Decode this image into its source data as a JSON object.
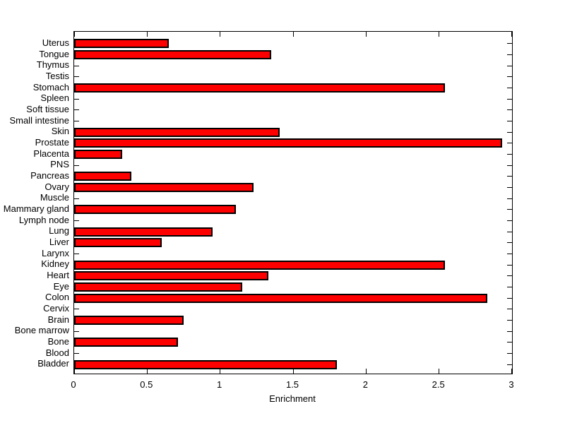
{
  "chart_data": {
    "type": "bar",
    "orientation": "horizontal",
    "title": "",
    "xlabel": "Enrichment",
    "ylabel": "",
    "xlim": [
      0,
      3
    ],
    "x_ticks": [
      0,
      0.5,
      1,
      1.5,
      2,
      2.5,
      3
    ],
    "x_tick_labels": [
      "0",
      "0.5",
      "1",
      "1.5",
      "2",
      "2.5",
      "3"
    ],
    "grid": false,
    "legend": null,
    "bar_color": "#ff0000",
    "bar_edge_color": "#000000",
    "axis_color": "#000000",
    "background_color": "#ffffff",
    "categories": [
      "Uterus",
      "Tongue",
      "Thymus",
      "Testis",
      "Stomach",
      "Spleen",
      "Soft tissue",
      "Small intestine",
      "Skin",
      "Prostate",
      "Placenta",
      "PNS",
      "Pancreas",
      "Ovary",
      "Muscle",
      "Mammary gland",
      "Lymph node",
      "Lung",
      "Liver",
      "Larynx",
      "Kidney",
      "Heart",
      "Eye",
      "Colon",
      "Cervix",
      "Brain",
      "Bone marrow",
      "Bone",
      "Blood",
      "Bladder"
    ],
    "values": [
      0.65,
      1.35,
      0,
      0,
      2.54,
      0,
      0,
      0,
      1.41,
      2.93,
      0.33,
      0,
      0.39,
      1.23,
      0,
      1.11,
      0,
      0.95,
      0.6,
      0,
      2.54,
      1.33,
      1.15,
      2.83,
      0,
      0.75,
      0,
      0.71,
      0,
      1.8
    ]
  }
}
